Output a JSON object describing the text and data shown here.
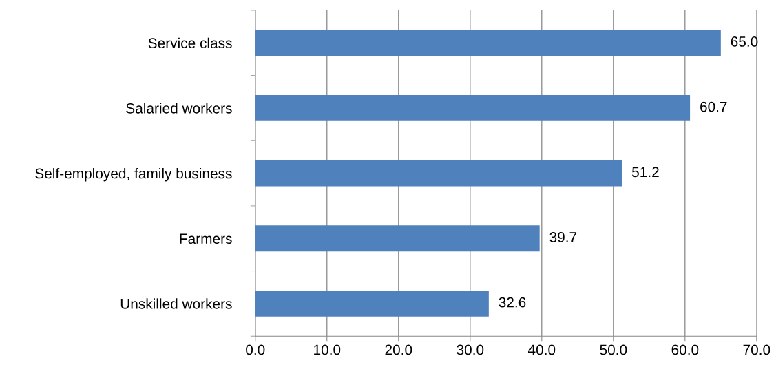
{
  "chart_data": {
    "type": "bar",
    "orientation": "horizontal",
    "categories": [
      "Service class",
      "Salaried workers",
      "Self-employed, family business",
      "Farmers",
      "Unskilled workers"
    ],
    "values": [
      65.0,
      60.7,
      51.2,
      39.7,
      32.6
    ],
    "value_labels": [
      "65.0",
      "60.7",
      "51.2",
      "39.7",
      "32.6"
    ],
    "color": "#4f81bd",
    "xlim": [
      0,
      70
    ],
    "xticks": [
      {
        "value": 0,
        "label": "0.0"
      },
      {
        "value": 10,
        "label": "10.0"
      },
      {
        "value": 20,
        "label": "20.0"
      },
      {
        "value": 30,
        "label": "30.0"
      },
      {
        "value": 40,
        "label": "40.0"
      },
      {
        "value": 50,
        "label": "50.0"
      },
      {
        "value": 60,
        "label": "60.0"
      },
      {
        "value": 70,
        "label": "70.0"
      }
    ],
    "grid": "x",
    "legend": false
  }
}
